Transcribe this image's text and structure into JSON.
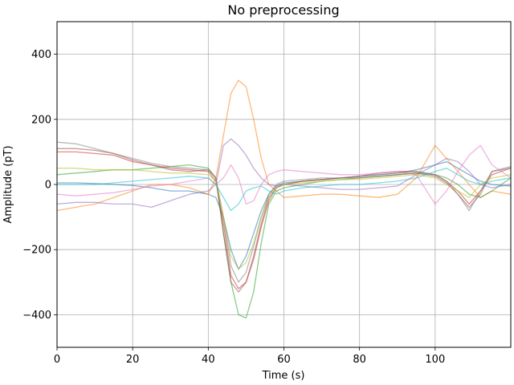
{
  "chart_data": {
    "type": "line",
    "title": "No preprocessing",
    "xlabel": "Time (s)",
    "ylabel": "Amplitude (pT)",
    "xlim": [
      0,
      120
    ],
    "ylim": [
      -500,
      500
    ],
    "xticks": [
      0,
      20,
      40,
      60,
      80,
      100
    ],
    "yticks": [
      -400,
      -200,
      0,
      200,
      400
    ],
    "grid": true,
    "x": [
      0,
      5,
      10,
      15,
      20,
      25,
      30,
      35,
      40,
      42,
      44,
      46,
      48,
      50,
      52,
      54,
      56,
      58,
      60,
      65,
      70,
      75,
      80,
      85,
      90,
      95,
      100,
      103,
      106,
      109,
      112,
      115,
      120
    ],
    "series": [
      {
        "color": "#1f77b4",
        "values": [
          5,
          5,
          3,
          0,
          -3,
          -10,
          -20,
          -20,
          -30,
          -40,
          -100,
          -200,
          -260,
          -220,
          -150,
          -80,
          -30,
          -5,
          5,
          10,
          15,
          20,
          25,
          30,
          35,
          45,
          60,
          70,
          50,
          30,
          10,
          0,
          -5
        ]
      },
      {
        "color": "#ff7f0e",
        "values": [
          -80,
          -70,
          -60,
          -40,
          -20,
          0,
          0,
          -10,
          -30,
          20,
          150,
          280,
          320,
          300,
          200,
          80,
          0,
          -20,
          -40,
          -35,
          -30,
          -30,
          -35,
          -40,
          -30,
          20,
          120,
          80,
          40,
          0,
          -40,
          -20,
          -30
        ]
      },
      {
        "color": "#2ca02c",
        "values": [
          30,
          35,
          40,
          45,
          45,
          50,
          55,
          60,
          50,
          20,
          -150,
          -300,
          -400,
          -410,
          -330,
          -180,
          -60,
          -20,
          -10,
          0,
          10,
          15,
          20,
          25,
          30,
          35,
          30,
          20,
          0,
          -30,
          -40,
          -20,
          20
        ]
      },
      {
        "color": "#d62728",
        "values": [
          100,
          100,
          95,
          90,
          70,
          60,
          50,
          45,
          40,
          10,
          -120,
          -280,
          -320,
          -300,
          -230,
          -130,
          -50,
          -10,
          0,
          10,
          15,
          20,
          25,
          35,
          40,
          40,
          30,
          10,
          -20,
          -60,
          -20,
          30,
          50
        ]
      },
      {
        "color": "#9467bd",
        "values": [
          -60,
          -55,
          -55,
          -60,
          -60,
          -70,
          -50,
          -30,
          -20,
          0,
          120,
          140,
          120,
          90,
          50,
          20,
          0,
          -5,
          0,
          -5,
          -10,
          -15,
          -15,
          -10,
          -5,
          30,
          60,
          80,
          70,
          40,
          0,
          -10,
          0
        ]
      },
      {
        "color": "#8c564b",
        "values": [
          110,
          110,
          105,
          95,
          75,
          60,
          45,
          40,
          45,
          20,
          -150,
          -300,
          -330,
          -300,
          -220,
          -120,
          -40,
          -10,
          0,
          10,
          15,
          20,
          20,
          25,
          30,
          35,
          25,
          5,
          -30,
          -70,
          -30,
          40,
          55
        ]
      },
      {
        "color": "#e377c2",
        "values": [
          -30,
          -35,
          -30,
          -25,
          -15,
          -5,
          0,
          10,
          20,
          0,
          20,
          60,
          20,
          -60,
          -50,
          0,
          30,
          40,
          45,
          40,
          35,
          30,
          30,
          35,
          40,
          30,
          -60,
          -20,
          40,
          90,
          120,
          60,
          20
        ]
      },
      {
        "color": "#7f7f7f",
        "values": [
          130,
          125,
          110,
          95,
          80,
          65,
          55,
          50,
          45,
          20,
          -100,
          -250,
          -300,
          -270,
          -190,
          -100,
          -30,
          0,
          10,
          15,
          20,
          20,
          25,
          30,
          35,
          40,
          30,
          10,
          -30,
          -80,
          -20,
          40,
          50
        ]
      },
      {
        "color": "#bcbd22",
        "values": [
          50,
          50,
          45,
          45,
          45,
          40,
          35,
          35,
          30,
          10,
          -100,
          -220,
          -260,
          -240,
          -180,
          -100,
          -40,
          -10,
          0,
          5,
          10,
          15,
          15,
          20,
          25,
          30,
          20,
          0,
          -20,
          -40,
          0,
          20,
          30
        ]
      },
      {
        "color": "#17becf",
        "values": [
          0,
          0,
          0,
          5,
          10,
          15,
          20,
          25,
          20,
          0,
          -40,
          -80,
          -60,
          -20,
          -10,
          -5,
          -20,
          -30,
          -20,
          -10,
          -5,
          0,
          0,
          5,
          10,
          20,
          40,
          50,
          30,
          10,
          0,
          10,
          20
        ]
      }
    ]
  }
}
